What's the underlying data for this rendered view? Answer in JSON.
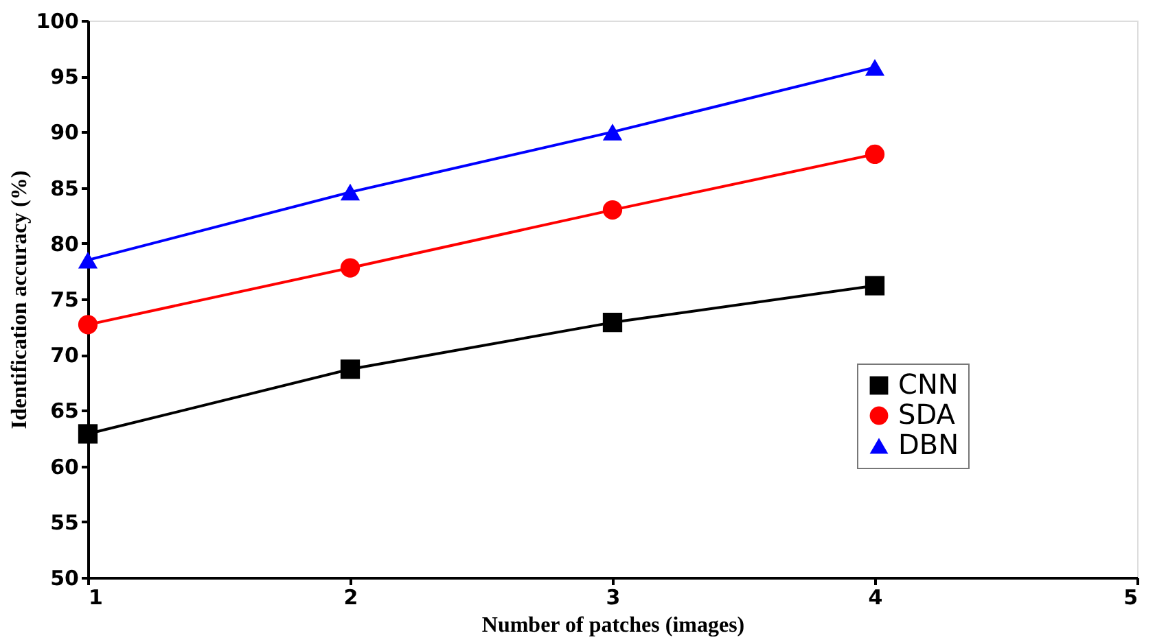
{
  "chart_data": {
    "type": "line",
    "xlabel": "Number of patches (images)",
    "ylabel": "Identification accuracy (%)",
    "x": [
      1,
      2,
      3,
      4
    ],
    "xlim": [
      1,
      5
    ],
    "xticks": [
      1,
      2,
      3,
      4,
      5
    ],
    "ylim": [
      50,
      100
    ],
    "yticks": [
      50,
      55,
      60,
      65,
      70,
      75,
      80,
      85,
      90,
      95,
      100
    ],
    "series": [
      {
        "name": "CNN",
        "color": "#000000",
        "marker": "square",
        "values": [
          62.9,
          68.7,
          72.9,
          76.2
        ]
      },
      {
        "name": "SDA",
        "color": "#ff0000",
        "marker": "circle",
        "values": [
          72.7,
          77.8,
          83.0,
          88.0
        ]
      },
      {
        "name": "DBN",
        "color": "#0000ff",
        "marker": "triangle",
        "values": [
          78.5,
          84.6,
          90.0,
          95.8
        ]
      }
    ],
    "grid": false,
    "legend": "right",
    "line_style": "solid"
  }
}
